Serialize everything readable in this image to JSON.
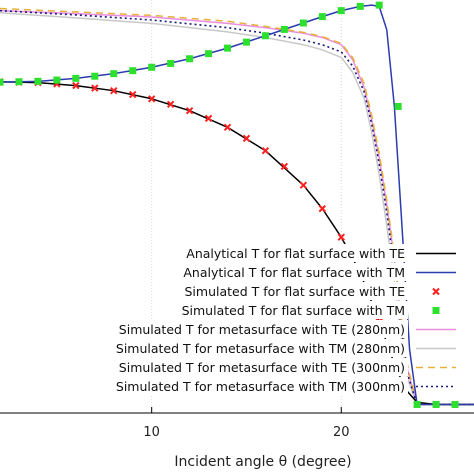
{
  "chart_data": {
    "type": "line",
    "title": "",
    "xlabel": "Incident angle θ (degree)",
    "ylabel": "",
    "xlim": [
      2,
      27
    ],
    "ylim": [
      -0.02,
      0.95
    ],
    "x_ticks": [
      10,
      20
    ],
    "x_tick_labels": [
      "10",
      "20"
    ],
    "grid": true,
    "legend_position": "bottom-right",
    "series": [
      {
        "name": "Analytical T for flat surface with TE",
        "style": "line",
        "color": "#000000",
        "dash": "",
        "x": [
          2,
          4,
          6,
          8,
          10,
          12,
          14,
          16,
          18,
          19,
          20,
          21,
          22,
          22.8,
          23.4,
          24,
          25,
          26,
          27
        ],
        "y": [
          0.758,
          0.756,
          0.749,
          0.737,
          0.718,
          0.69,
          0.651,
          0.596,
          0.515,
          0.46,
          0.393,
          0.309,
          0.195,
          0.095,
          0.035,
          0.005,
          0,
          0,
          0
        ]
      },
      {
        "name": "Analytical T for flat surface with TM",
        "style": "line",
        "color": "#2b3bb0",
        "dash": "",
        "x": [
          2,
          4,
          6,
          8,
          10,
          12,
          14,
          16,
          18,
          19,
          20,
          21,
          21.6,
          22,
          22.4,
          22.8,
          23.2,
          23.6,
          24,
          25,
          26,
          27
        ],
        "y": [
          0.757,
          0.759,
          0.766,
          0.777,
          0.792,
          0.812,
          0.837,
          0.866,
          0.896,
          0.911,
          0.925,
          0.935,
          0.938,
          0.935,
          0.88,
          0.7,
          0.42,
          0.13,
          0,
          0,
          0,
          0
        ]
      },
      {
        "name": "Simulated T for flat surface with TE",
        "style": "marker",
        "marker": "x",
        "color": "#ff2020",
        "x": [
          2,
          3,
          4,
          5,
          6,
          7,
          8,
          9,
          10,
          11,
          12,
          13,
          14,
          15,
          16,
          17,
          18,
          19,
          20,
          21,
          22,
          23,
          24,
          25,
          26
        ],
        "y": [
          0.758,
          0.757,
          0.756,
          0.753,
          0.749,
          0.743,
          0.737,
          0.728,
          0.718,
          0.705,
          0.69,
          0.672,
          0.651,
          0.625,
          0.596,
          0.559,
          0.515,
          0.46,
          0.393,
          0.309,
          0.195,
          0.05,
          0,
          0,
          0
        ]
      },
      {
        "name": "Simulated T for flat surface with TM",
        "style": "marker",
        "marker": "square",
        "color": "#2ee02e",
        "x": [
          2,
          3,
          4,
          5,
          6,
          7,
          8,
          9,
          10,
          11,
          12,
          13,
          14,
          15,
          16,
          17,
          18,
          19,
          20,
          21,
          22,
          23,
          24,
          25,
          26
        ],
        "y": [
          0.757,
          0.758,
          0.759,
          0.762,
          0.766,
          0.771,
          0.777,
          0.784,
          0.792,
          0.801,
          0.812,
          0.824,
          0.837,
          0.851,
          0.866,
          0.881,
          0.896,
          0.911,
          0.925,
          0.935,
          0.938,
          0.7,
          0,
          0,
          0
        ]
      },
      {
        "name": "Simulated T for metasurface with TE (280nm)",
        "style": "line",
        "color": "#e98ee0",
        "dash": "",
        "x": [
          2,
          6,
          10,
          14,
          16,
          18,
          19,
          20,
          20.6,
          21.2,
          21.6,
          22,
          22.4,
          22.8,
          23.1,
          23.5,
          24,
          27
        ],
        "y": [
          0.925,
          0.918,
          0.91,
          0.895,
          0.885,
          0.872,
          0.862,
          0.845,
          0.81,
          0.745,
          0.67,
          0.58,
          0.47,
          0.34,
          0.22,
          0.08,
          0,
          0
        ]
      },
      {
        "name": "Simulated T for metasurface with TM (280nm)",
        "style": "line",
        "color": "#c8c8c8",
        "dash": "",
        "x": [
          2,
          6,
          10,
          14,
          16,
          18,
          19,
          20,
          20.6,
          21.2,
          21.6,
          22,
          22.4,
          22.8,
          23.1,
          23.5,
          24,
          27
        ],
        "y": [
          0.92,
          0.908,
          0.895,
          0.875,
          0.862,
          0.845,
          0.833,
          0.815,
          0.78,
          0.72,
          0.64,
          0.54,
          0.42,
          0.29,
          0.17,
          0.06,
          0,
          0
        ]
      },
      {
        "name": "Simulated T for metasurface with TE (300nm)",
        "style": "line",
        "color": "#e8b23a",
        "dash": "7,5",
        "x": [
          2,
          6,
          10,
          14,
          16,
          18,
          19,
          20,
          20.6,
          21.2,
          21.6,
          22,
          22.4,
          22.8,
          23.1,
          23.5,
          24,
          27
        ],
        "y": [
          0.93,
          0.922,
          0.914,
          0.9,
          0.888,
          0.874,
          0.864,
          0.848,
          0.815,
          0.755,
          0.68,
          0.59,
          0.48,
          0.35,
          0.23,
          0.09,
          0,
          0
        ]
      },
      {
        "name": "Simulated T for metasurface with TM (300nm)",
        "style": "line",
        "color": "#1a1a7a",
        "dash": "2,3",
        "x": [
          2,
          6,
          10,
          14,
          16,
          18,
          19,
          20,
          20.6,
          21.2,
          21.6,
          22,
          22.4,
          22.8,
          23.1,
          23.5,
          24,
          27
        ],
        "y": [
          0.925,
          0.915,
          0.903,
          0.885,
          0.872,
          0.856,
          0.845,
          0.828,
          0.795,
          0.735,
          0.66,
          0.565,
          0.45,
          0.32,
          0.2,
          0.07,
          0,
          0
        ]
      }
    ]
  }
}
